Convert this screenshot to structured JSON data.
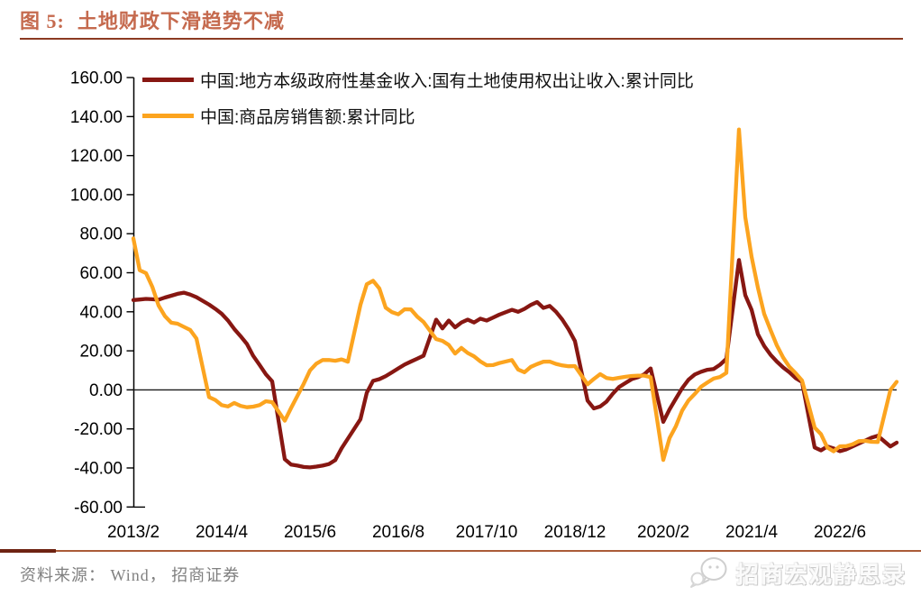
{
  "figure": {
    "label": "图 5:",
    "title": "土地财政下滑趋势不减"
  },
  "source": {
    "text": "资料来源： Wind， 招商证券"
  },
  "watermark": {
    "icon": "wechat-icon",
    "text": "招商宏观静思录"
  },
  "colors": {
    "land_series": "#871712",
    "sales_series": "#FCA41F",
    "title_text": "#C56A4E",
    "title_underline": "#8B3A22",
    "footer_rule_dark": "#6E2312",
    "footer_rule_light": "#AA5B38",
    "axis": "#000000",
    "source_text": "#808080"
  },
  "chart_data": {
    "type": "line",
    "title": "土地财政下滑趋势不减",
    "legend_position": "top-left",
    "grid": false,
    "ylim": [
      -60,
      160
    ],
    "y_tick_labels": [
      "160.00",
      "140.00",
      "120.00",
      "100.00",
      "80.00",
      "60.00",
      "40.00",
      "20.00",
      "0.00",
      "-20.00",
      "-40.00",
      "-60.00"
    ],
    "x_tick_labels": [
      "2013/2",
      "2014/4",
      "2015/6",
      "2016/8",
      "2017/10",
      "2018/12",
      "2020/2",
      "2021/4",
      "2022/6"
    ],
    "x_tick_months": [
      "2013/2",
      "2014/4",
      "2015/6",
      "2016/8",
      "2017/10",
      "2018/12",
      "2020/2",
      "2021/4",
      "2022/6"
    ],
    "months": [
      "2013/2",
      "2013/3",
      "2013/4",
      "2013/5",
      "2013/6",
      "2013/7",
      "2013/8",
      "2013/9",
      "2013/10",
      "2013/11",
      "2013/12",
      "2014/2",
      "2014/3",
      "2014/4",
      "2014/5",
      "2014/6",
      "2014/7",
      "2014/8",
      "2014/9",
      "2014/10",
      "2014/11",
      "2014/12",
      "2015/2",
      "2015/3",
      "2015/4",
      "2015/5",
      "2015/6",
      "2015/7",
      "2015/8",
      "2015/9",
      "2015/10",
      "2015/11",
      "2015/12",
      "2016/2",
      "2016/3",
      "2016/4",
      "2016/5",
      "2016/6",
      "2016/7",
      "2016/8",
      "2016/9",
      "2016/10",
      "2016/11",
      "2016/12",
      "2017/2",
      "2017/3",
      "2017/4",
      "2017/5",
      "2017/6",
      "2017/7",
      "2017/8",
      "2017/9",
      "2017/10",
      "2017/11",
      "2017/12",
      "2018/2",
      "2018/3",
      "2018/4",
      "2018/5",
      "2018/6",
      "2018/7",
      "2018/8",
      "2018/9",
      "2018/10",
      "2018/11",
      "2018/12",
      "2019/2",
      "2019/3",
      "2019/4",
      "2019/5",
      "2019/6",
      "2019/7",
      "2019/8",
      "2019/9",
      "2019/10",
      "2019/11",
      "2019/12",
      "2020/2",
      "2020/3",
      "2020/4",
      "2020/5",
      "2020/6",
      "2020/7",
      "2020/8",
      "2020/9",
      "2020/10",
      "2020/11",
      "2020/12",
      "2021/2",
      "2021/3",
      "2021/4",
      "2021/5",
      "2021/6",
      "2021/7",
      "2021/8",
      "2021/9",
      "2021/10",
      "2021/11",
      "2021/12",
      "2022/2",
      "2022/3",
      "2022/4",
      "2022/5",
      "2022/6",
      "2022/7",
      "2022/8",
      "2022/9",
      "2022/10",
      "2022/11",
      "2022/12",
      "2023/2",
      "2023/3"
    ],
    "series": [
      {
        "name": "中国:地方本级政府性基金收入:国有土地使用权出让收入:累计同比",
        "color": "#871712",
        "values": [
          46.0,
          46.3,
          46.6,
          46.4,
          46.2,
          47.3,
          48.2,
          49.2,
          49.8,
          48.8,
          47.5,
          43.7,
          41.5,
          39.0,
          35.5,
          31.2,
          27.5,
          23.5,
          17.4,
          12.8,
          8.0,
          4.4,
          -35.5,
          -38.3,
          -38.8,
          -39.5,
          -39.7,
          -39.3,
          -38.8,
          -38.0,
          -36.0,
          -30.0,
          -25.0,
          -15.0,
          -1.5,
          4.6,
          5.5,
          7.0,
          9.0,
          11.0,
          13.0,
          14.5,
          16.0,
          17.5,
          36.0,
          31.5,
          35.5,
          32.0,
          34.5,
          36.0,
          34.5,
          36.5,
          35.5,
          37.0,
          38.5,
          41.0,
          40.0,
          41.5,
          43.5,
          45.0,
          42.0,
          43.0,
          40.0,
          36.0,
          31.0,
          25.0,
          -5.5,
          -9.5,
          -8.5,
          -6.0,
          -2.0,
          1.5,
          3.5,
          5.5,
          6.5,
          8.0,
          11.0,
          -16.4,
          -10.0,
          -4.5,
          0.9,
          5.2,
          7.9,
          9.3,
          10.3,
          10.7,
          12.9,
          15.9,
          66.5,
          48.5,
          41.0,
          28.5,
          22.5,
          18.0,
          14.5,
          11.5,
          9.0,
          6.0,
          4.0,
          -29.5,
          -31.0,
          -29.0,
          -30.0,
          -31.4,
          -30.5,
          -29.0,
          -27.5,
          -26.0,
          -24.5,
          -23.5,
          -29.0,
          -27.0
        ]
      },
      {
        "name": "中国:商品房销售额:累计同比",
        "color": "#FCA41F",
        "values": [
          77.6,
          61.3,
          59.8,
          52.8,
          43.2,
          37.8,
          34.4,
          33.9,
          32.3,
          30.7,
          26.3,
          -3.7,
          -5.2,
          -7.8,
          -8.5,
          -6.7,
          -8.2,
          -8.9,
          -8.6,
          -7.8,
          -5.8,
          -6.3,
          -15.8,
          -9.3,
          -3.1,
          3.1,
          10.0,
          13.4,
          15.3,
          15.3,
          14.9,
          15.6,
          14.4,
          43.6,
          54.1,
          55.9,
          51.9,
          42.1,
          39.8,
          38.7,
          41.3,
          41.2,
          37.5,
          34.8,
          26.0,
          25.1,
          23.0,
          18.6,
          21.5,
          18.9,
          17.2,
          14.6,
          12.6,
          12.7,
          13.7,
          15.3,
          10.4,
          9.0,
          11.8,
          13.2,
          14.4,
          14.5,
          13.3,
          12.5,
          12.1,
          12.2,
          2.8,
          5.6,
          8.1,
          6.1,
          5.6,
          6.2,
          6.7,
          7.1,
          7.3,
          7.3,
          6.5,
          -35.9,
          -24.7,
          -18.6,
          -10.6,
          -5.4,
          -2.1,
          1.6,
          3.8,
          5.8,
          6.6,
          8.7,
          133.4,
          88.5,
          68.2,
          52.4,
          38.9,
          30.7,
          22.8,
          16.6,
          11.8,
          8.5,
          4.8,
          -19.3,
          -22.7,
          -29.5,
          -31.5,
          -28.9,
          -28.8,
          -27.9,
          -26.3,
          -26.1,
          -26.6,
          -26.7,
          -0.1,
          4.1
        ]
      }
    ]
  }
}
